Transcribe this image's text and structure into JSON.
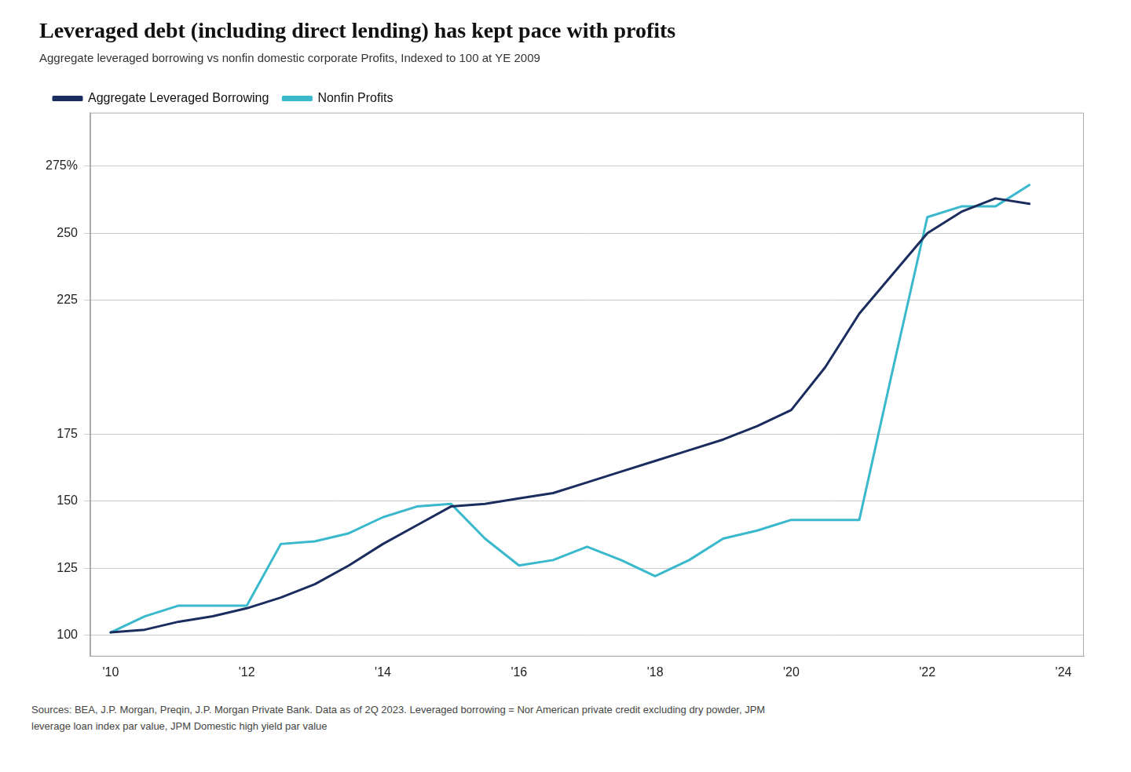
{
  "chart_data": {
    "type": "line",
    "title": "Leveraged debt (including direct lending) has kept pace with profits",
    "subtitle": "Aggregate leveraged borrowing vs nonfin domestic corporate Profits, Indexed to 100 at YE 2009",
    "footnote": "Sources: BEA, J.P. Morgan, Preqin, J.P. Morgan Private Bank. Data as of 2Q 2023. Leveraged borrowing = Nor American private credit excluding dry powder, JPM\nleverage loan index par value, JPM Domestic high yield par value",
    "x": [
      2010,
      2010.5,
      2011,
      2011.5,
      2012,
      2012.5,
      2013,
      2013.5,
      2014,
      2014.5,
      2015,
      2015.5,
      2016,
      2016.5,
      2017,
      2017.5,
      2018,
      2018.5,
      2019,
      2019.5,
      2020,
      2020.5,
      2021,
      2021.5,
      2022,
      2022.5,
      2023,
      2023.5
    ],
    "series": [
      {
        "name": "Aggregate Leveraged Borrowing",
        "color": "#1b2d5e",
        "values": [
          101,
          102,
          105,
          107,
          110,
          114,
          119,
          126,
          134,
          141,
          148,
          149,
          151,
          153,
          157,
          161,
          165,
          169,
          173,
          178,
          184,
          200,
          220,
          235,
          250,
          258,
          263,
          261
        ]
      },
      {
        "name": "Nonfin Profits",
        "color": "#3ab8cc",
        "values": [
          101,
          107,
          111,
          111,
          111,
          134,
          135,
          138,
          144,
          148,
          149,
          136,
          126,
          128,
          133,
          128,
          122,
          128,
          136,
          139,
          143,
          143,
          143,
          200,
          256,
          260,
          260,
          268
        ]
      }
    ],
    "xlim": [
      2009.7,
      2024.3
    ],
    "ylim": [
      92,
      295
    ],
    "xticks": [
      {
        "value": 2010,
        "label": "'10"
      },
      {
        "value": 2012,
        "label": "'12"
      },
      {
        "value": 2014,
        "label": "'14"
      },
      {
        "value": 2016,
        "label": "'16"
      },
      {
        "value": 2018,
        "label": "'18"
      },
      {
        "value": 2020,
        "label": "'20"
      },
      {
        "value": 2022,
        "label": "'22"
      },
      {
        "value": 2024,
        "label": "'24"
      }
    ],
    "yticks": [
      100,
      125,
      150,
      175,
      225,
      250,
      {
        "value": 275,
        "label": "275%"
      }
    ],
    "grid": "y",
    "legend": "upper left"
  }
}
